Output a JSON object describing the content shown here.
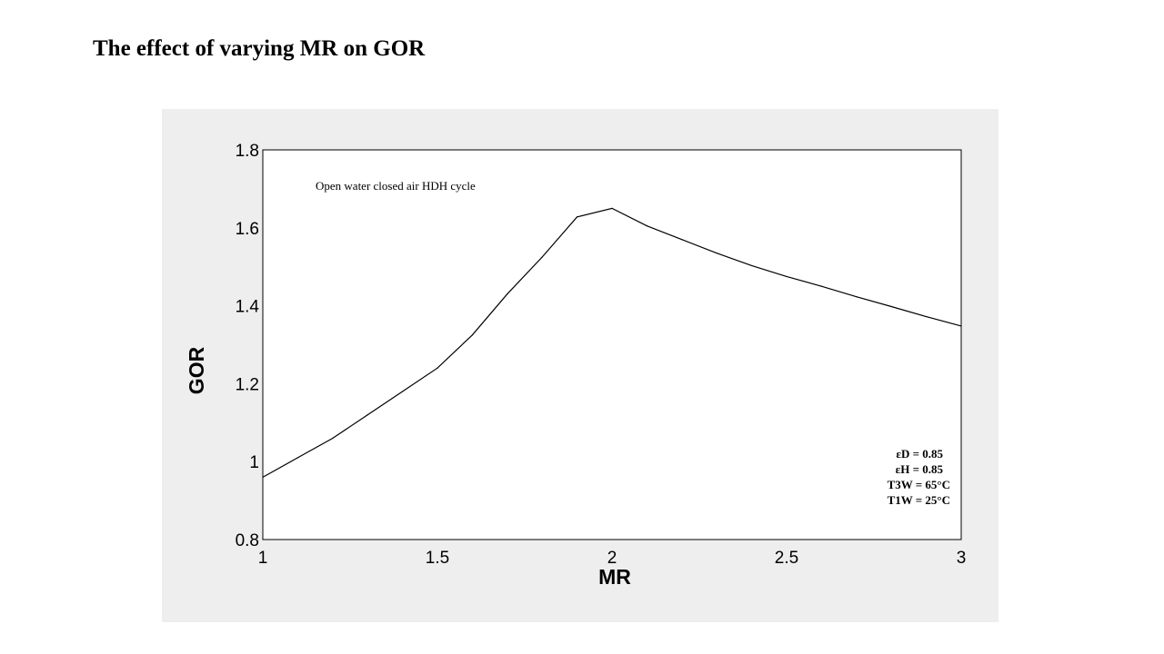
{
  "page": {
    "title": "The effect of varying MR on GOR"
  },
  "chart_data": {
    "type": "line",
    "title": "",
    "xlabel": "MR",
    "ylabel": "GOR",
    "xlim": [
      1,
      3
    ],
    "ylim": [
      0.8,
      1.8
    ],
    "x_ticks": [
      1,
      1.5,
      2,
      2.5,
      3
    ],
    "x_tick_labels": [
      "1",
      "1.5",
      "2",
      "2.5",
      "3"
    ],
    "y_ticks": [
      0.8,
      1,
      1.2,
      1.4,
      1.6,
      1.8
    ],
    "y_tick_labels": [
      "0.8",
      "1",
      "1.2",
      "1.4",
      "1.6",
      "1.8"
    ],
    "grid": false,
    "annotation": "Open water closed air HDH cycle",
    "parameters": [
      "εD = 0.85",
      "εH = 0.85",
      "T3W = 65°C",
      "T1W = 25°C"
    ],
    "series": [
      {
        "x": [
          1.0,
          1.1,
          1.2,
          1.3,
          1.4,
          1.5,
          1.6,
          1.7,
          1.8,
          1.9,
          2.0,
          2.1,
          2.2,
          2.3,
          2.4,
          2.5,
          2.6,
          2.7,
          2.8,
          2.9,
          3.0
        ],
        "y": [
          0.96,
          1.01,
          1.06,
          1.12,
          1.18,
          1.24,
          1.325,
          1.43,
          1.525,
          1.628,
          1.65,
          1.605,
          1.57,
          1.535,
          1.503,
          1.475,
          1.45,
          1.423,
          1.398,
          1.372,
          1.348
        ],
        "color": "#000000"
      }
    ]
  }
}
